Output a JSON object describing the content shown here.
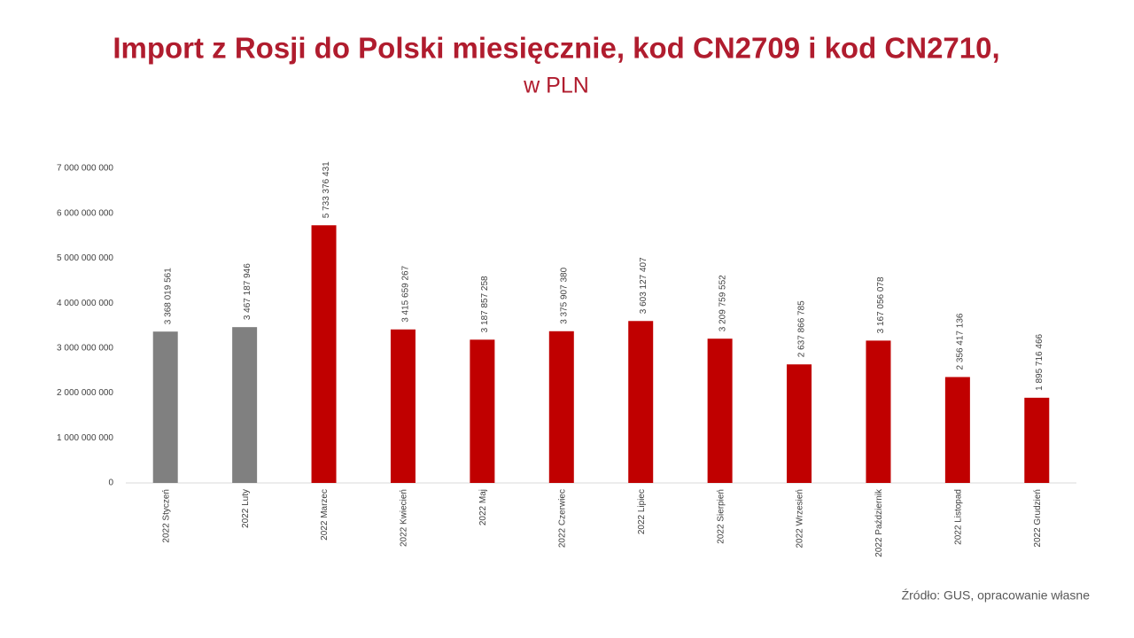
{
  "chart_data": {
    "type": "bar",
    "title": "Import z Rosji do Polski miesięcznie, kod CN2709 i kod CN2710,",
    "subtitle": "w PLN",
    "source": "Źródło: GUS, opracowanie własne",
    "categories": [
      "2022 Styczeń",
      "2022 Luty",
      "2022 Marzec",
      "2022 Kwiecień",
      "2022 Maj",
      "2022 Czerwiec",
      "2022 Lipiec",
      "2022 Sierpień",
      "2022 Wrzesień",
      "2022 Październik",
      "2022 Listopad",
      "2022 Grudzień"
    ],
    "values": [
      3368019561,
      3467187946,
      5733376431,
      3415659267,
      3187857258,
      3375907380,
      3603127407,
      3209759552,
      2637866785,
      3167056078,
      2356417136,
      1895716466
    ],
    "value_labels": [
      "3 368 019 561",
      "3 467 187 946",
      "5 733 376 431",
      "3 415 659 267",
      "3 187 857 258",
      "3 375 907 380",
      "3 603 127 407",
      "3 209 759 552",
      "2 637 866 785",
      "3 167 056 078",
      "2 356 417 136",
      "1 895 716 466"
    ],
    "colors": [
      "#808080",
      "#808080",
      "#c00000",
      "#c00000",
      "#c00000",
      "#c00000",
      "#c00000",
      "#c00000",
      "#c00000",
      "#c00000",
      "#c00000",
      "#c00000"
    ],
    "ylim": [
      0,
      7000000000
    ],
    "yticks": [
      0,
      {
        "value": 1000000000,
        "label": "1 000 000 000"
      },
      {
        "value": 2000000000,
        "label": "2 000 000 000"
      },
      {
        "value": 3000000000,
        "label": "3 000 000 000"
      },
      {
        "value": 4000000000,
        "label": "4 000 000 000"
      },
      {
        "value": 5000000000,
        "label": "5 000 000 000"
      },
      {
        "value": 6000000000,
        "label": "6 000 000 000"
      },
      {
        "value": 7000000000,
        "label": "7 000 000 000"
      }
    ],
    "grid": false
  }
}
